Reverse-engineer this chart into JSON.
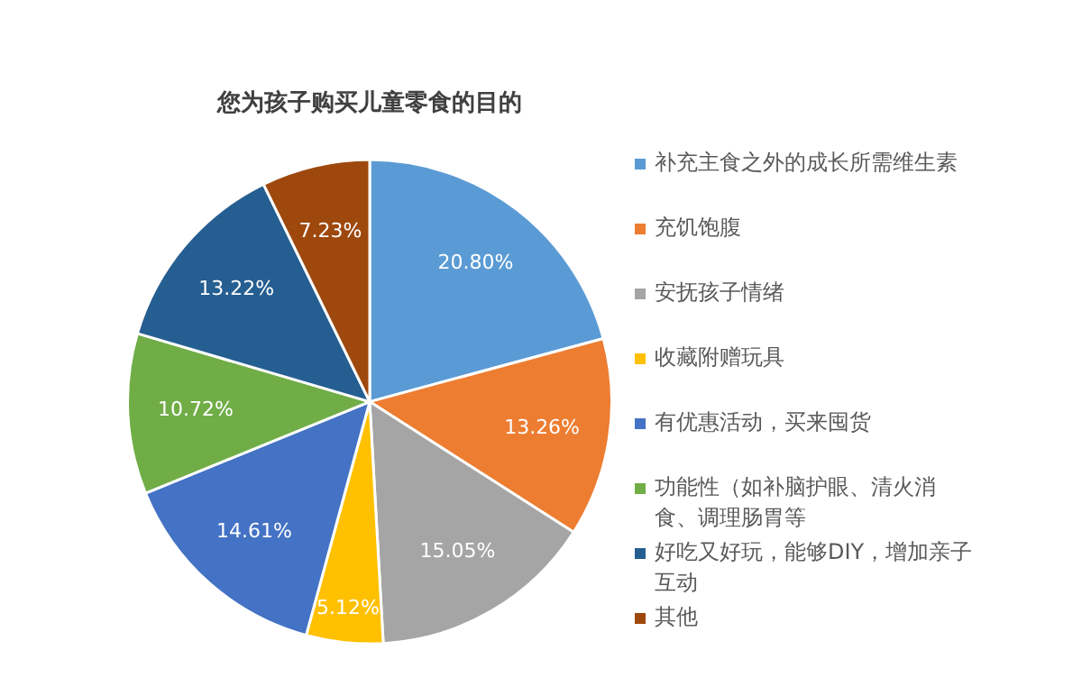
{
  "chart_data": {
    "type": "pie",
    "title": "您为孩子购买儿童零食的目的",
    "categories": [
      "补充主食之外的成长所需维生素",
      "充饥饱腹",
      "安抚孩子情绪",
      "收藏附赠玩具",
      "有优惠活动，买来囤货",
      "功能性（如补脑护眼、清火消食、调理肠胃等",
      "好吃又好玩，能够DIY，增加亲子互动",
      "其他"
    ],
    "values": [
      20.8,
      13.26,
      15.05,
      5.12,
      14.61,
      10.72,
      13.22,
      7.23
    ],
    "value_labels": [
      "20.80%",
      "13.26%",
      "15.05%",
      "5.12%",
      "14.61%",
      "10.72%",
      "13.22%",
      "7.23%"
    ],
    "colors": [
      "#5b9bd5",
      "#ed7d31",
      "#a5a5a5",
      "#ffc000",
      "#4472c4",
      "#70ad47",
      "#255e91",
      "#9e480e"
    ],
    "legend": "right"
  }
}
